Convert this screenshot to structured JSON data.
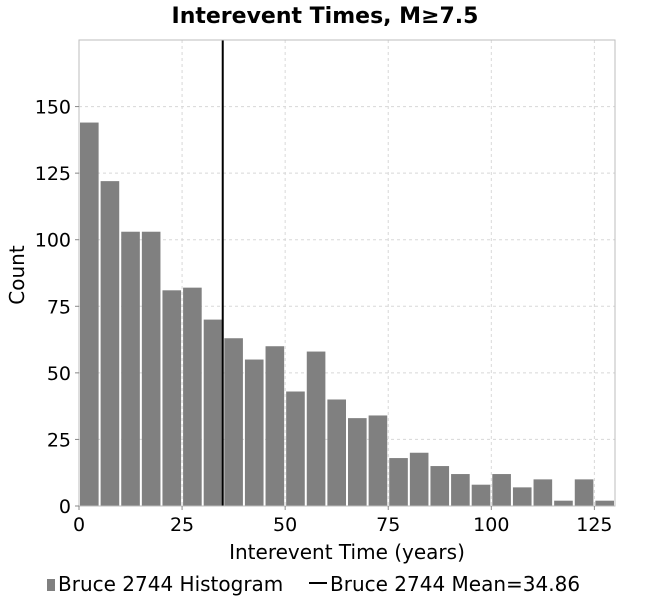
{
  "chart_data": {
    "type": "bar",
    "title": "Interevent Times, M≥7.5",
    "xlabel": "Interevent Time (years)",
    "ylabel": "Count",
    "xlim": [
      0,
      130
    ],
    "ylim": [
      0,
      175
    ],
    "xticks": [
      0,
      25,
      50,
      75,
      100,
      125
    ],
    "yticks": [
      0,
      25,
      50,
      75,
      100,
      125,
      150
    ],
    "bin_width": 5,
    "grid": true,
    "series": [
      {
        "name": "Bruce 2744 Histogram",
        "color": "#808080",
        "bins": [
          {
            "x0": 0,
            "x1": 5,
            "count": 144
          },
          {
            "x0": 5,
            "x1": 10,
            "count": 122
          },
          {
            "x0": 10,
            "x1": 15,
            "count": 103
          },
          {
            "x0": 15,
            "x1": 20,
            "count": 103
          },
          {
            "x0": 20,
            "x1": 25,
            "count": 81
          },
          {
            "x0": 25,
            "x1": 30,
            "count": 82
          },
          {
            "x0": 30,
            "x1": 35,
            "count": 70
          },
          {
            "x0": 35,
            "x1": 40,
            "count": 63
          },
          {
            "x0": 40,
            "x1": 45,
            "count": 55
          },
          {
            "x0": 45,
            "x1": 50,
            "count": 60
          },
          {
            "x0": 50,
            "x1": 55,
            "count": 43
          },
          {
            "x0": 55,
            "x1": 60,
            "count": 58
          },
          {
            "x0": 60,
            "x1": 65,
            "count": 40
          },
          {
            "x0": 65,
            "x1": 70,
            "count": 33
          },
          {
            "x0": 70,
            "x1": 75,
            "count": 34
          },
          {
            "x0": 75,
            "x1": 80,
            "count": 18
          },
          {
            "x0": 80,
            "x1": 85,
            "count": 20
          },
          {
            "x0": 85,
            "x1": 90,
            "count": 15
          },
          {
            "x0": 90,
            "x1": 95,
            "count": 12
          },
          {
            "x0": 95,
            "x1": 100,
            "count": 8
          },
          {
            "x0": 100,
            "x1": 105,
            "count": 12
          },
          {
            "x0": 105,
            "x1": 110,
            "count": 7
          },
          {
            "x0": 110,
            "x1": 115,
            "count": 10
          },
          {
            "x0": 115,
            "x1": 120,
            "count": 2
          },
          {
            "x0": 120,
            "x1": 125,
            "count": 10
          },
          {
            "x0": 125,
            "x1": 130,
            "count": 2
          }
        ]
      },
      {
        "name": "Bruce 2744 Mean=34.86",
        "type": "vline",
        "x": 34.86,
        "color": "#000000"
      }
    ],
    "legend": {
      "position": "bottom",
      "items": [
        {
          "label": "Bruce 2744 Histogram",
          "symbol": "square",
          "color": "#808080"
        },
        {
          "label": "Bruce 2744 Mean=34.86",
          "symbol": "line",
          "color": "#000000"
        }
      ]
    }
  }
}
